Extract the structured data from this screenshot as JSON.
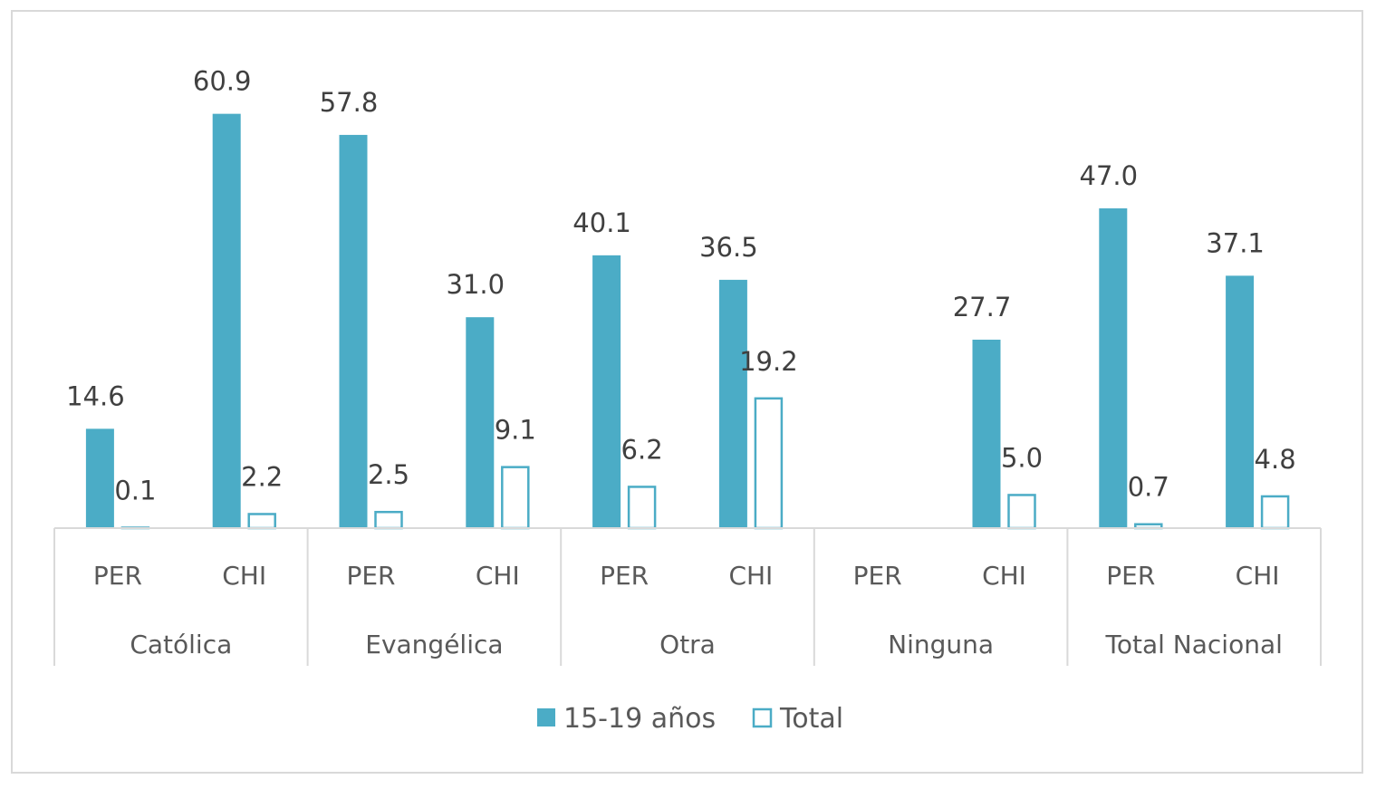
{
  "chart_data": {
    "type": "bar",
    "title": "",
    "xlabel": "",
    "ylabel": "",
    "ylim": [
      0,
      65
    ],
    "grid": false,
    "legend_position": "bottom",
    "groups": [
      "Católica",
      "Evangélica",
      "Otra",
      "Ninguna",
      "Total Nacional"
    ],
    "subcategories": [
      "PER",
      "CHI"
    ],
    "categories": [
      "Católica PER",
      "Católica CHI",
      "Evangélica PER",
      "Evangélica CHI",
      "Otra PER",
      "Otra CHI",
      "Ninguna PER",
      "Ninguna CHI",
      "Total Nacional PER",
      "Total Nacional CHI"
    ],
    "series": [
      {
        "name": "15-19 años",
        "style": "filled",
        "color": "#4bacc6",
        "values": [
          14.6,
          60.9,
          57.8,
          31.0,
          40.1,
          36.5,
          null,
          27.7,
          47.0,
          37.1
        ],
        "labels": [
          "14.6",
          "60.9",
          "57.8",
          "31.0",
          "40.1",
          "36.5",
          "",
          "27.7",
          "47.0",
          "37.1"
        ]
      },
      {
        "name": "Total",
        "style": "outline",
        "color": "#4bacc6",
        "values": [
          0.1,
          2.2,
          2.5,
          9.1,
          6.2,
          19.2,
          null,
          5.0,
          0.7,
          4.8
        ],
        "labels": [
          "0.1",
          "2.2",
          "2.5",
          "9.1",
          "6.2",
          "19.2",
          "",
          "5.0",
          "0.7",
          "4.8"
        ]
      }
    ]
  },
  "colors": {
    "accent": "#4bacc6",
    "axis": "#d9d9d9",
    "text": "#595959",
    "label": "#404040"
  }
}
